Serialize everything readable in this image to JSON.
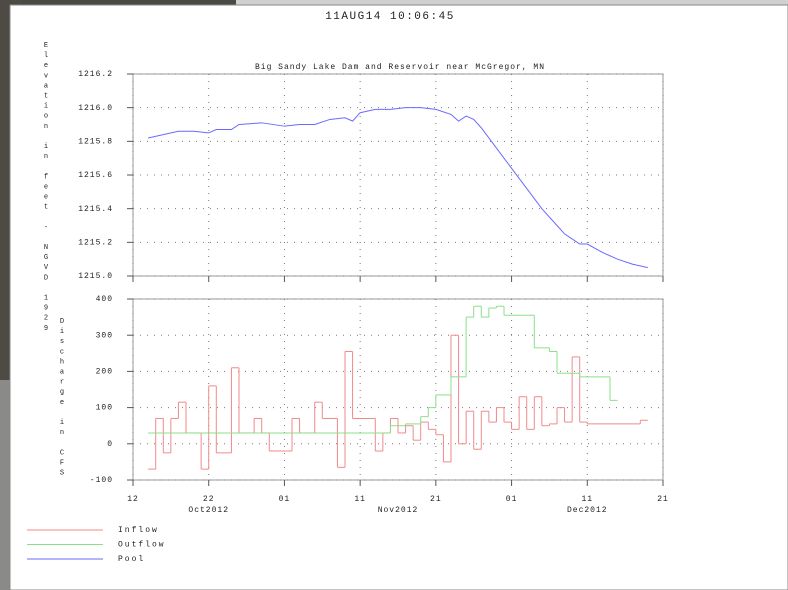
{
  "header": {
    "timestamp": "11AUG14  10:06:45"
  },
  "chart_data": [
    {
      "type": "line",
      "title": "Big Sandy Lake Dam and Reservoir near McGregor, MN",
      "ylabel": "Elevation in feet - NGVD 1929",
      "xlim": [
        "2012-10-12",
        "2012-12-21"
      ],
      "xticks": [
        "2012-10-12",
        "2012-10-22",
        "2012-11-01",
        "2012-11-11",
        "2012-11-21",
        "2012-12-01",
        "2012-12-11",
        "2012-12-21"
      ],
      "ylim": [
        1215.0,
        1216.2
      ],
      "yticks": [
        {
          "value": 1215.0,
          "label": "1215.0"
        },
        1215.2,
        1215.4,
        1215.6,
        1215.8,
        {
          "value": 1216.0,
          "label": "1216.0"
        },
        1216.2
      ],
      "grid": true,
      "series": [
        {
          "name": "Pool",
          "color": "#6a6aff",
          "x": [
            "2012-10-14",
            "2012-10-16",
            "2012-10-18",
            "2012-10-20",
            "2012-10-22",
            "2012-10-23",
            "2012-10-25",
            "2012-10-26",
            "2012-10-29",
            "2012-11-01",
            "2012-11-03",
            "2012-11-05",
            "2012-11-07",
            "2012-11-09",
            "2012-11-10",
            "2012-11-11",
            "2012-11-13",
            "2012-11-15",
            "2012-11-17",
            "2012-11-19",
            "2012-11-21",
            "2012-11-23",
            "2012-11-24",
            "2012-11-25",
            "2012-11-26",
            "2012-11-27",
            "2012-11-29",
            "2012-12-01",
            "2012-12-03",
            "2012-12-05",
            "2012-12-07",
            "2012-12-08",
            "2012-12-09",
            "2012-12-10",
            "2012-12-11",
            "2012-12-13",
            "2012-12-15",
            "2012-12-17",
            "2012-12-19"
          ],
          "values": [
            1215.82,
            1215.84,
            1215.86,
            1215.86,
            1215.85,
            1215.87,
            1215.87,
            1215.9,
            1215.91,
            1215.89,
            1215.9,
            1215.9,
            1215.93,
            1215.94,
            1215.92,
            1215.97,
            1215.99,
            1215.99,
            1216.0,
            1216.0,
            1215.99,
            1215.96,
            1215.92,
            1215.95,
            1215.93,
            1215.88,
            1215.76,
            1215.64,
            1215.52,
            1215.4,
            1215.3,
            1215.25,
            1215.22,
            1215.19,
            1215.19,
            1215.14,
            1215.1,
            1215.07,
            1215.05
          ]
        }
      ]
    },
    {
      "type": "step",
      "ylabel": "Discharge in CFS",
      "xlim": [
        "2012-10-12",
        "2012-12-21"
      ],
      "xticks": [
        {
          "value": "2012-10-12",
          "label": "12"
        },
        {
          "value": "2012-10-22",
          "label": "22"
        },
        {
          "value": "2012-11-01",
          "label": "01"
        },
        {
          "value": "2012-11-11",
          "label": "11"
        },
        {
          "value": "2012-11-21",
          "label": "21"
        },
        {
          "value": "2012-12-01",
          "label": "01"
        },
        {
          "value": "2012-12-11",
          "label": "11"
        },
        {
          "value": "2012-12-21",
          "label": "21"
        }
      ],
      "month_labels": [
        {
          "value": "2012-10-22",
          "label": "Oct2012"
        },
        {
          "value": "2012-11-16",
          "label": "Nov2012"
        },
        {
          "value": "2012-12-11",
          "label": "Dec2012"
        }
      ],
      "ylim": [
        -100,
        400
      ],
      "yticks": [
        -100,
        0,
        100,
        200,
        300,
        400
      ],
      "grid": true,
      "series": [
        {
          "name": "Inflow",
          "color": "#f08a8a",
          "x": [
            "2012-10-14",
            "2012-10-15",
            "2012-10-16",
            "2012-10-17",
            "2012-10-18",
            "2012-10-19",
            "2012-10-21",
            "2012-10-22",
            "2012-10-23",
            "2012-10-25",
            "2012-10-26",
            "2012-10-28",
            "2012-10-29",
            "2012-10-30",
            "2012-11-02",
            "2012-11-03",
            "2012-11-05",
            "2012-11-06",
            "2012-11-08",
            "2012-11-09",
            "2012-11-10",
            "2012-11-13",
            "2012-11-14",
            "2012-11-15",
            "2012-11-16",
            "2012-11-17",
            "2012-11-18",
            "2012-11-19",
            "2012-11-20",
            "2012-11-21",
            "2012-11-22",
            "2012-11-23",
            "2012-11-24",
            "2012-11-25",
            "2012-11-26",
            "2012-11-27",
            "2012-11-28",
            "2012-11-29",
            "2012-11-30",
            "2012-12-01",
            "2012-12-02",
            "2012-12-03",
            "2012-12-04",
            "2012-12-05",
            "2012-12-06",
            "2012-12-07",
            "2012-12-08",
            "2012-12-09",
            "2012-12-10",
            "2012-12-11",
            "2012-12-18"
          ],
          "values": [
            -70,
            70,
            -25,
            70,
            115,
            30,
            -70,
            160,
            -25,
            210,
            30,
            70,
            30,
            -20,
            70,
            30,
            115,
            70,
            -65,
            255,
            70,
            -20,
            30,
            70,
            30,
            50,
            10,
            60,
            40,
            25,
            -50,
            300,
            0,
            90,
            -15,
            90,
            60,
            100,
            60,
            40,
            130,
            40,
            130,
            50,
            55,
            100,
            60,
            240,
            60,
            55,
            65
          ]
        },
        {
          "name": "Outflow",
          "color": "#8ae08a",
          "x": [
            "2012-10-14",
            "2012-11-15",
            "2012-11-17",
            "2012-11-19",
            "2012-11-20",
            "2012-11-21",
            "2012-11-23",
            "2012-11-25",
            "2012-11-26",
            "2012-11-27",
            "2012-11-28",
            "2012-11-29",
            "2012-11-30",
            "2012-12-04",
            "2012-12-06",
            "2012-12-07",
            "2012-12-10",
            "2012-12-14"
          ],
          "values": [
            30,
            50,
            55,
            75,
            100,
            135,
            185,
            350,
            380,
            350,
            375,
            380,
            355,
            265,
            255,
            195,
            185,
            120
          ]
        }
      ]
    }
  ]
}
